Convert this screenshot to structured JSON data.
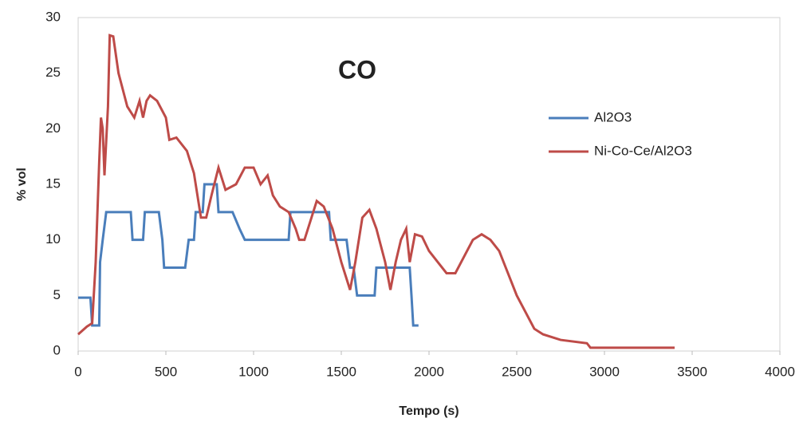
{
  "chart_data": {
    "type": "line",
    "title": "CO",
    "xlabel": "Tempo (s)",
    "ylabel": "% vol",
    "xlim": [
      0,
      4000
    ],
    "xticks": [
      0,
      500,
      1000,
      1500,
      2000,
      2500,
      3000,
      3500,
      4000
    ],
    "ylim": [
      0,
      30
    ],
    "yticks": [
      0,
      5,
      10,
      15,
      20,
      25,
      30
    ],
    "grid": false,
    "legend": "right",
    "series": [
      {
        "name": "Al2O3",
        "color": "#4a7ebb",
        "x": [
          0,
          70,
          80,
          120,
          125,
          140,
          160,
          300,
          310,
          370,
          380,
          460,
          480,
          490,
          610,
          630,
          660,
          670,
          710,
          720,
          790,
          800,
          880,
          920,
          950,
          1200,
          1210,
          1430,
          1440,
          1530,
          1550,
          1570,
          1590,
          1690,
          1700,
          1890,
          1900,
          1910,
          1940
        ],
        "values": [
          4.8,
          4.8,
          2.3,
          2.3,
          8,
          10,
          12.5,
          12.5,
          10,
          10,
          12.5,
          12.5,
          10,
          7.5,
          7.5,
          10,
          10,
          12.5,
          12.5,
          15,
          15,
          12.5,
          12.5,
          11,
          10,
          10,
          12.5,
          12.5,
          10,
          10,
          7.5,
          7.5,
          5,
          5,
          7.5,
          7.5,
          5,
          2.3,
          2.3
        ]
      },
      {
        "name": "Ni-Co-Ce/Al2O3",
        "color": "#be4b48",
        "x": [
          0,
          50,
          80,
          100,
          120,
          130,
          140,
          150,
          170,
          180,
          200,
          230,
          280,
          320,
          350,
          370,
          390,
          410,
          450,
          500,
          520,
          560,
          620,
          660,
          680,
          700,
          730,
          760,
          800,
          840,
          900,
          950,
          1000,
          1040,
          1080,
          1110,
          1150,
          1200,
          1240,
          1260,
          1290,
          1330,
          1360,
          1400,
          1450,
          1500,
          1550,
          1580,
          1620,
          1660,
          1700,
          1750,
          1780,
          1810,
          1840,
          1870,
          1890,
          1920,
          1960,
          2000,
          2050,
          2100,
          2150,
          2200,
          2250,
          2300,
          2350,
          2400,
          2450,
          2500,
          2550,
          2600,
          2650,
          2750,
          2900,
          2920,
          3400
        ],
        "values": [
          1.5,
          2.2,
          2.5,
          8,
          17,
          21,
          20,
          15.8,
          22,
          28.4,
          28.3,
          25,
          22,
          21,
          22.5,
          21,
          22.5,
          23,
          22.5,
          21,
          19,
          19.2,
          18,
          16,
          14,
          12,
          12,
          14,
          16.5,
          14.5,
          15,
          16.5,
          16.5,
          15,
          15.8,
          14,
          13,
          12.5,
          11,
          10,
          10,
          12,
          13.5,
          13,
          11,
          8,
          5.5,
          8,
          12,
          12.7,
          11,
          8,
          5.5,
          8,
          10,
          11,
          8,
          10.5,
          10.3,
          9,
          8,
          7,
          7,
          8.5,
          10,
          10.5,
          10,
          9,
          7,
          5,
          3.5,
          2,
          1.5,
          1,
          0.7,
          0.3,
          0.3
        ]
      }
    ]
  }
}
